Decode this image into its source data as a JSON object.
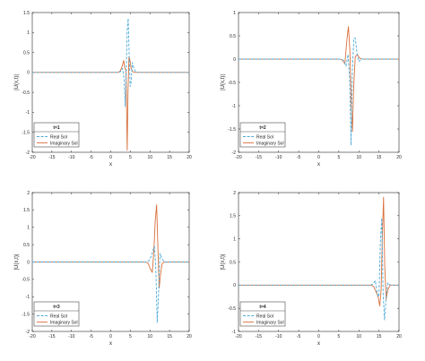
{
  "chart_data": [
    {
      "type": "line",
      "title": "",
      "xlabel": "x",
      "ylabel": "|U(x,t)|",
      "xlim": [
        -20,
        20
      ],
      "ylim": [
        -2,
        1.5
      ],
      "xticks": [
        "-20",
        "-15",
        "-10",
        "-5",
        "0",
        "5",
        "10",
        "15",
        "20"
      ],
      "yticks": [
        "-2",
        "-1.5",
        "-1",
        "-0.5",
        "0",
        "0.5",
        "1",
        "1.5"
      ],
      "legend": {
        "title": "t=1",
        "position": "bottom-left",
        "entries": [
          "Real Sol",
          "Imaginary Sol"
        ]
      },
      "series": [
        {
          "name": "Real Sol",
          "style": "dashed",
          "color": "#4daad8",
          "x": [
            -20,
            2.0,
            2.5,
            3.0,
            3.4,
            3.7,
            4.0,
            4.2,
            4.45,
            4.7,
            4.95,
            5.2,
            5.5,
            5.9,
            6.3,
            7.0,
            20
          ],
          "y": [
            0,
            0,
            0.02,
            0.1,
            -0.15,
            -0.85,
            0.25,
            1.05,
            1.35,
            0.45,
            -0.35,
            -0.25,
            0.25,
            0.1,
            0.02,
            0,
            0
          ]
        },
        {
          "name": "Imaginary Sol",
          "style": "solid",
          "color": "#d9703d",
          "x": [
            -20,
            1.8,
            2.4,
            2.9,
            3.3,
            3.6,
            3.9,
            4.05,
            4.2,
            4.4,
            4.65,
            4.9,
            5.2,
            5.6,
            6.0,
            7.0,
            20
          ],
          "y": [
            0,
            0,
            0.03,
            0.15,
            0.3,
            0.1,
            0.05,
            -1.0,
            -1.95,
            -0.5,
            0.4,
            0.3,
            0.1,
            0.02,
            0,
            0,
            0
          ]
        }
      ]
    },
    {
      "type": "line",
      "title": "",
      "xlabel": "x",
      "ylabel": "|U(x,t)|",
      "xlim": [
        -20,
        20
      ],
      "ylim": [
        -2,
        1
      ],
      "xticks": [
        "-20",
        "-15",
        "-10",
        "-5",
        "0",
        "5",
        "10",
        "15",
        "20"
      ],
      "yticks": [
        "-2",
        "-1.5",
        "-1",
        "-0.5",
        "0",
        "0.5",
        "1"
      ],
      "legend": {
        "title": "t=2",
        "position": "bottom-left",
        "entries": [
          "Real Sol",
          "Imaginary Sol"
        ]
      },
      "series": [
        {
          "name": "Real Sol",
          "style": "dashed",
          "color": "#4daad8",
          "x": [
            -20,
            5.5,
            6.2,
            6.8,
            7.3,
            7.7,
            8.05,
            8.4,
            8.75,
            9.1,
            9.5,
            10.0,
            10.6,
            11.3,
            20
          ],
          "y": [
            0,
            0,
            -0.03,
            -0.15,
            0.1,
            -0.4,
            -1.85,
            -0.2,
            0.45,
            0.45,
            0.15,
            -0.05,
            0,
            0,
            0
          ]
        },
        {
          "name": "Imaginary Sol",
          "style": "solid",
          "color": "#d9703d",
          "x": [
            -20,
            5.2,
            5.9,
            6.5,
            7.0,
            7.4,
            7.75,
            8.1,
            8.4,
            8.7,
            9.1,
            9.6,
            10.2,
            11.0,
            20
          ],
          "y": [
            0,
            0,
            -0.02,
            -0.1,
            0.4,
            0.7,
            0.2,
            -1.0,
            -1.55,
            -0.6,
            0.05,
            0.1,
            0.02,
            0,
            0
          ]
        }
      ]
    },
    {
      "type": "line",
      "title": "",
      "xlabel": "x",
      "ylabel": "|U(x,t)|",
      "xlim": [
        -20,
        20
      ],
      "ylim": [
        -2,
        2
      ],
      "xticks": [
        "-20",
        "-15",
        "-10",
        "-5",
        "0",
        "5",
        "10",
        "15",
        "20"
      ],
      "yticks": [
        "-2",
        "-1.5",
        "-1",
        "-0.5",
        "0",
        "0.5",
        "1",
        "1.5",
        "2"
      ],
      "legend": {
        "title": "t=3",
        "position": "bottom-left",
        "entries": [
          "Real Sol",
          "Imaginary Sol"
        ]
      },
      "series": [
        {
          "name": "Real Sol",
          "style": "dashed",
          "color": "#4daad8",
          "x": [
            -20,
            9.0,
            9.7,
            10.3,
            10.8,
            11.15,
            11.5,
            11.85,
            12.2,
            12.55,
            12.9,
            13.3,
            13.8,
            14.5,
            20
          ],
          "y": [
            0,
            0,
            0.03,
            0.15,
            0.35,
            0.45,
            -0.2,
            -1.75,
            -0.9,
            0.25,
            0.15,
            0.05,
            0,
            0,
            0
          ]
        },
        {
          "name": "Imaginary Sol",
          "style": "solid",
          "color": "#d9703d",
          "x": [
            -20,
            8.8,
            9.5,
            10.1,
            10.6,
            11.0,
            11.35,
            11.7,
            12.0,
            12.35,
            12.7,
            13.1,
            13.6,
            14.4,
            20
          ],
          "y": [
            0,
            0,
            -0.03,
            -0.2,
            -0.3,
            0.35,
            1.2,
            1.65,
            0.5,
            -0.75,
            -0.35,
            -0.05,
            0,
            0,
            0
          ]
        }
      ]
    },
    {
      "type": "line",
      "title": "",
      "xlabel": "x",
      "ylabel": "|U(x,t)|",
      "xlim": [
        -20,
        20
      ],
      "ylim": [
        -1,
        2
      ],
      "xticks": [
        "-20",
        "-15",
        "-10",
        "-5",
        "0",
        "5",
        "10",
        "15",
        "20"
      ],
      "yticks": [
        "-1",
        "-0.5",
        "0",
        "0.5",
        "1",
        "1.5",
        "2"
      ],
      "legend": {
        "title": "t=4",
        "position": "bottom-left",
        "entries": [
          "Real Sol",
          "Imaginary Sol"
        ]
      },
      "series": [
        {
          "name": "Real Sol",
          "style": "dashed",
          "color": "#4daad8",
          "x": [
            -20,
            12.8,
            13.5,
            14.1,
            14.6,
            15.0,
            15.35,
            15.7,
            16.05,
            16.4,
            16.8,
            17.2,
            17.7,
            18.4,
            20
          ],
          "y": [
            0,
            0,
            0.02,
            0.1,
            -0.2,
            -0.25,
            0.9,
            1.45,
            -0.2,
            -0.75,
            -0.25,
            0.05,
            0.01,
            0,
            0
          ]
        },
        {
          "name": "Imaginary Sol",
          "style": "solid",
          "color": "#d9703d",
          "x": [
            -20,
            13.0,
            13.7,
            14.3,
            14.8,
            15.2,
            15.55,
            15.85,
            16.15,
            16.45,
            16.8,
            17.2,
            17.8,
            18.5,
            20
          ],
          "y": [
            0,
            0,
            -0.03,
            -0.15,
            -0.25,
            -0.45,
            -0.1,
            1.05,
            1.9,
            0.4,
            -0.3,
            -0.1,
            0,
            0,
            0
          ]
        }
      ]
    }
  ]
}
